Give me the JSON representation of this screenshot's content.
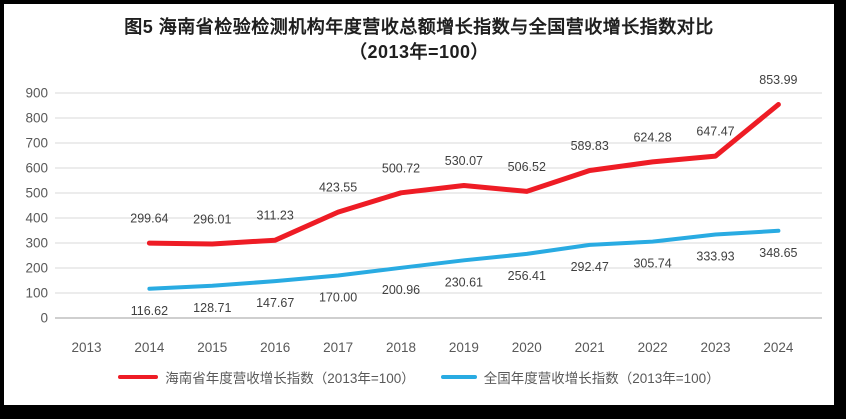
{
  "title": {
    "line1": "图5  海南省检验检测机构年度营收总额增长指数与全国营收增长指数对比",
    "line2": "（2013年=100）"
  },
  "chart_data": {
    "type": "line",
    "x_categories": [
      "2013",
      "2014",
      "2015",
      "2016",
      "2017",
      "2018",
      "2019",
      "2020",
      "2021",
      "2022",
      "2023",
      "2024"
    ],
    "series": [
      {
        "name": "海南省年度营收增长指数（2013年=100）",
        "color": "#ee1c25",
        "start_index": 1,
        "values": [
          299.64,
          296.01,
          311.23,
          423.55,
          500.72,
          530.07,
          506.52,
          589.83,
          624.28,
          647.47,
          853.99
        ],
        "labels": [
          "299.64",
          "296.01",
          "311.23",
          "423.55",
          "500.72",
          "530.07",
          "506.52",
          "589.83",
          "624.28",
          "647.47",
          "853.99"
        ],
        "label_position": "above"
      },
      {
        "name": "全国年度营收增长指数（2013年=100）",
        "color": "#29abe2",
        "start_index": 1,
        "values": [
          116.62,
          128.71,
          147.67,
          170.0,
          200.96,
          230.61,
          256.41,
          292.47,
          305.74,
          333.93,
          348.65
        ],
        "labels": [
          "116.62",
          "128.71",
          "147.67",
          "170.00",
          "200.96",
          "230.61",
          "256.41",
          "292.47",
          "305.74",
          "333.93",
          "348.65"
        ],
        "label_position": "below"
      }
    ],
    "y_axis": {
      "min": 0,
      "max": 900,
      "step": 100,
      "tick_labels": [
        "0",
        "100",
        "200",
        "300",
        "400",
        "500",
        "600",
        "700",
        "800",
        "900"
      ]
    },
    "grid": "horizontal",
    "legend_position": "bottom"
  },
  "colors": {
    "background": "#ffffff",
    "frame_border": "#000000",
    "gridline": "#d9d9d9",
    "axis_line": "#bfbfbf",
    "axis_text": "#595959",
    "data_label_text": "#404040",
    "title_text": "#1f1f1f"
  }
}
